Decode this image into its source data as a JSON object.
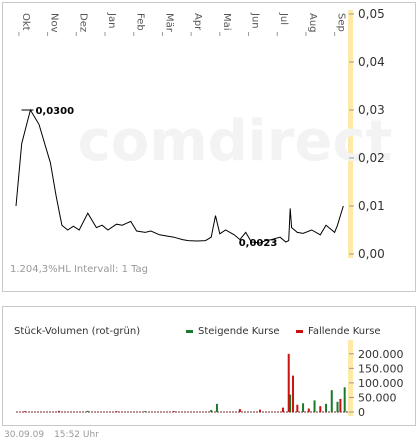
{
  "price_chart": {
    "watermark": "comdirect",
    "max_annotation": "0,0300",
    "min_annotation": "0,0023",
    "perf_label": "1.204,3%HL  Intervall: 1 Tag"
  },
  "volume_chart": {
    "title": "Stück-Volumen (rot-grün)",
    "legend_up": "Steigende Kurse",
    "legend_down": "Fallende Kurse"
  },
  "footer": {
    "date": "30.09.09",
    "time": "15:52 Uhr"
  },
  "colors": {
    "up": "#1a7a2a",
    "down": "#cc1111",
    "line": "#000000",
    "highlight": "#ffe9a8"
  },
  "chart_data": [
    {
      "type": "line",
      "title": "",
      "ylim": [
        0,
        0.05
      ],
      "yticks": [
        "0,00",
        "0,01",
        "0,02",
        "0,03",
        "0,04",
        "0,05"
      ],
      "months": [
        "Okt",
        "Nov",
        "Dez",
        "Jan",
        "Feb",
        "Mär",
        "Apr",
        "Mai",
        "Jun",
        "Jul",
        "Aug",
        "Sep"
      ],
      "x_months": [
        0,
        0.2,
        0.5,
        0.8,
        1,
        1.2,
        1.4,
        1.6,
        1.8,
        2,
        2.2,
        2.5,
        2.8,
        3,
        3.2,
        3.5,
        3.7,
        4,
        4.2,
        4.5,
        4.7,
        5,
        5.2,
        5.5,
        5.8,
        6,
        6.3,
        6.6,
        6.8,
        6.95,
        7.1,
        7.3,
        7.6,
        7.8,
        8,
        8.2,
        8.5,
        8.7,
        8.9,
        9.2,
        9.4,
        9.5,
        9.55,
        9.6,
        9.7,
        9.8,
        10,
        10.3,
        10.6,
        10.8,
        11,
        11.1,
        11.2,
        11.4
      ],
      "y": [
        0.01,
        0.023,
        0.03,
        0.027,
        0.023,
        0.019,
        0.012,
        0.006,
        0.005,
        0.0058,
        0.005,
        0.0085,
        0.0055,
        0.006,
        0.005,
        0.0062,
        0.006,
        0.0068,
        0.0048,
        0.0045,
        0.0048,
        0.004,
        0.0038,
        0.0035,
        0.003,
        0.0028,
        0.0027,
        0.0028,
        0.0035,
        0.008,
        0.0042,
        0.005,
        0.004,
        0.003,
        0.0045,
        0.0025,
        0.0023,
        0.0028,
        0.003,
        0.0035,
        0.0025,
        0.0028,
        0.0095,
        0.0055,
        0.005,
        0.0045,
        0.0043,
        0.005,
        0.004,
        0.006,
        0.005,
        0.0045,
        0.006,
        0.01
      ],
      "annotations": [
        {
          "x_month": 0.4,
          "y": 0.03,
          "label": "0,0300"
        },
        {
          "x_month": 8.5,
          "y": 0.0023,
          "label": "0,0023"
        }
      ]
    },
    {
      "type": "bar",
      "title": "Stück-Volumen (rot-grün)",
      "ylim": [
        0,
        220000
      ],
      "yticks": [
        "0",
        "50.000",
        "100.000",
        "150.000",
        "200.000"
      ],
      "series": [
        {
          "name": "Steigende Kurse",
          "x_months": [
            2.5,
            4.5,
            6.8,
            7.0,
            9.55,
            10.0,
            10.4,
            10.8,
            11.0,
            11.2,
            11.45
          ],
          "values": [
            4000,
            3000,
            7000,
            28000,
            60000,
            30000,
            40000,
            28000,
            75000,
            35000,
            85000
          ]
        },
        {
          "name": "Fallende Kurse",
          "x_months": [
            0.3,
            1.5,
            3.5,
            5.5,
            7.8,
            8.5,
            9.3,
            9.5,
            9.65,
            9.8,
            10.2,
            10.6,
            11.3
          ],
          "values": [
            3000,
            4000,
            3000,
            3000,
            10000,
            8000,
            15000,
            200000,
            125000,
            25000,
            12000,
            20000,
            45000
          ]
        }
      ]
    }
  ]
}
